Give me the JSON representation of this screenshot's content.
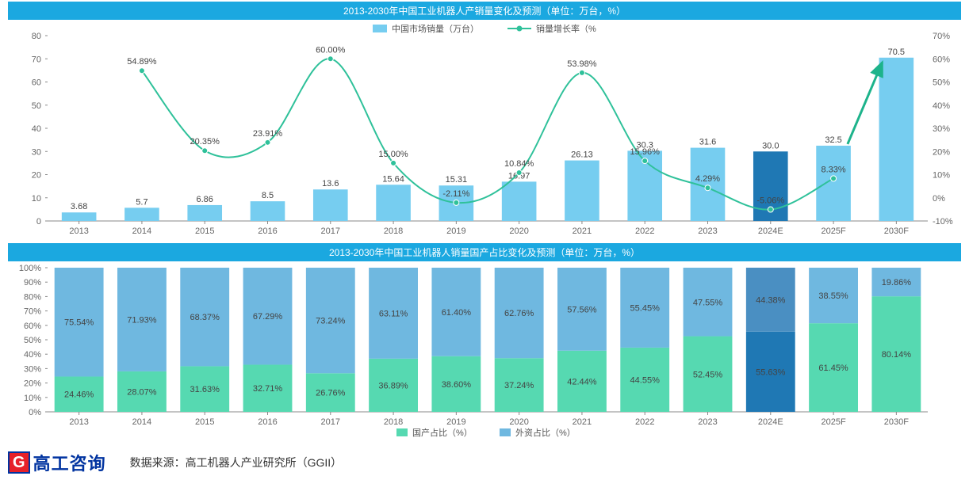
{
  "chart1": {
    "type": "bar+line",
    "title": "2013-2030年中国工业机器人产销量变化及预测（单位：万台，%）",
    "categories": [
      "2013",
      "2014",
      "2015",
      "2016",
      "2017",
      "2018",
      "2019",
      "2020",
      "2021",
      "2022",
      "2023",
      "2024E",
      "2025F",
      "2030F"
    ],
    "bars": {
      "label": "中国市场销量（万台）",
      "values": [
        3.68,
        5.7,
        6.86,
        8.5,
        13.6,
        15.64,
        15.31,
        16.97,
        26.13,
        30.3,
        31.6,
        30.0,
        32.5,
        70.5
      ],
      "color": "#76cdf0",
      "highlight_index": 11,
      "highlight_color": "#1f78b4"
    },
    "line": {
      "label": "销量增长率（%",
      "values": [
        null,
        54.89,
        20.35,
        23.91,
        60.0,
        15.0,
        -2.11,
        10.84,
        53.98,
        15.96,
        4.29,
        -5.06,
        8.33,
        null
      ],
      "color": "#2fc19a",
      "marker": "circle"
    },
    "yleft": {
      "min": 0,
      "max": 80,
      "step": 10
    },
    "yright": {
      "min": -10,
      "max": 70,
      "step": 10,
      "suffix": "%"
    },
    "arrow": {
      "from_index": 12,
      "to_index": 13,
      "color": "#1db38b"
    },
    "bg": "#ffffff",
    "tick_color": "#888"
  },
  "chart2": {
    "type": "stacked-bar",
    "title": "2013-2030年中国工业机器人销量国产占比变化及预测（单位：万台，%）",
    "categories": [
      "2013",
      "2014",
      "2015",
      "2016",
      "2017",
      "2018",
      "2019",
      "2020",
      "2021",
      "2022",
      "2023",
      "2024E",
      "2025F",
      "2030F"
    ],
    "series": [
      {
        "label": "国产占比（%）",
        "color": "#56d9b1",
        "values": [
          24.46,
          28.07,
          31.63,
          32.71,
          26.76,
          36.89,
          38.6,
          37.24,
          42.44,
          44.55,
          52.45,
          55.63,
          61.45,
          80.14
        ],
        "highlight_color": "#1f78b4"
      },
      {
        "label": "外资占比（%）",
        "color": "#6fb8e0",
        "values": [
          75.54,
          71.93,
          68.37,
          67.29,
          73.24,
          63.11,
          61.4,
          62.76,
          57.56,
          55.45,
          47.55,
          44.38,
          38.55,
          19.86
        ],
        "highlight_color": "#4a8fc2"
      }
    ],
    "highlight_index": 11,
    "y": {
      "min": 0,
      "max": 100,
      "step": 10,
      "suffix": "%"
    },
    "bg": "#ffffff"
  },
  "footer": {
    "logo_badge": "G",
    "logo_text": "高工咨询",
    "source": "数据来源：高工机器人产业研究所（GGII）"
  }
}
